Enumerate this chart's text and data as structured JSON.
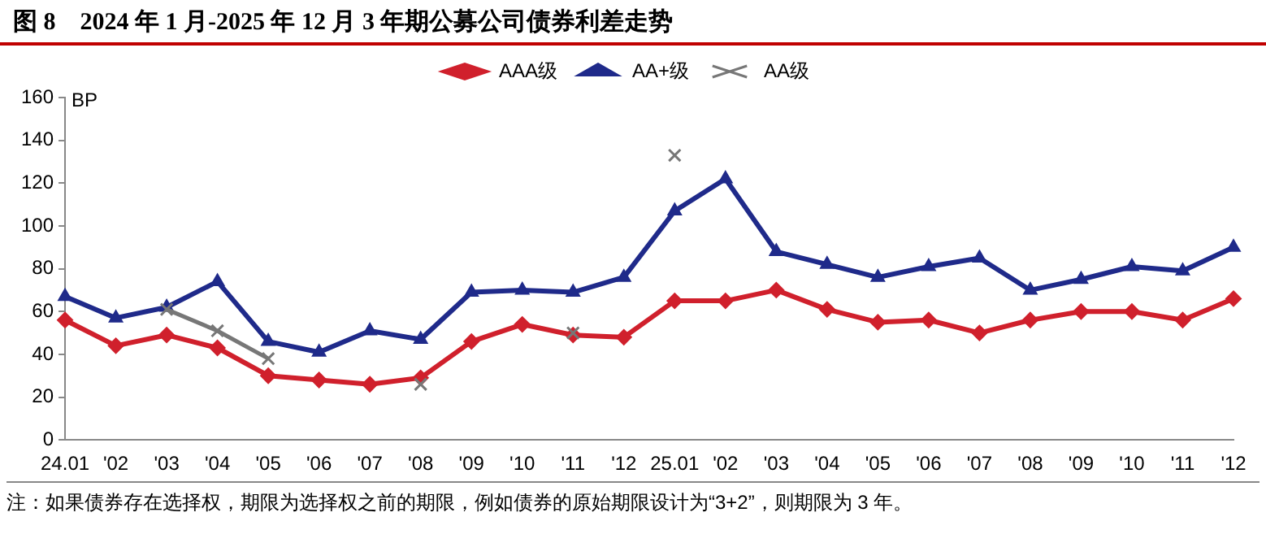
{
  "chart_data": {
    "type": "line",
    "title": "图 8　2024 年 1 月-2025 年 12 月 3 年期公募公司债券利差走势",
    "ylabel": "BP",
    "categories": [
      "24.01",
      "'02",
      "'03",
      "'04",
      "'05",
      "'06",
      "'07",
      "'08",
      "'09",
      "'10",
      "'11",
      "'12",
      "25.01",
      "'02",
      "'03",
      "'04",
      "'05",
      "'06",
      "'07",
      "'08",
      "'09",
      "'10",
      "'11",
      "'12"
    ],
    "series": [
      {
        "name": "AAA级",
        "color": "#d0202c",
        "marker": "diamond",
        "values": [
          56,
          44,
          49,
          43,
          30,
          28,
          26,
          29,
          46,
          54,
          49,
          48,
          65,
          65,
          70,
          61,
          55,
          56,
          50,
          56,
          60,
          60,
          56,
          66
        ]
      },
      {
        "name": "AA+级",
        "color": "#1f2a8a",
        "marker": "triangle",
        "values": [
          67,
          57,
          62,
          74,
          46,
          41,
          51,
          47,
          69,
          70,
          69,
          76,
          107,
          122,
          88,
          82,
          76,
          81,
          85,
          70,
          75,
          81,
          79,
          90
        ]
      },
      {
        "name": "AA级",
        "color": "#777777",
        "marker": "cross",
        "values": [
          null,
          null,
          61,
          51,
          38,
          null,
          null,
          26,
          null,
          null,
          50,
          null,
          133,
          null,
          null,
          null,
          null,
          null,
          null,
          null,
          null,
          null,
          null,
          null
        ]
      }
    ],
    "ylim": [
      0,
      160
    ],
    "yticks": [
      0,
      20,
      40,
      60,
      80,
      100,
      120,
      140,
      160
    ],
    "grid": false,
    "legend": "top",
    "annotations": [
      "注：如果债券存在选择权，期限为选择权之前的期限，例如债券的原始期限设计为“3+2”，则期限为 3 年。"
    ]
  }
}
